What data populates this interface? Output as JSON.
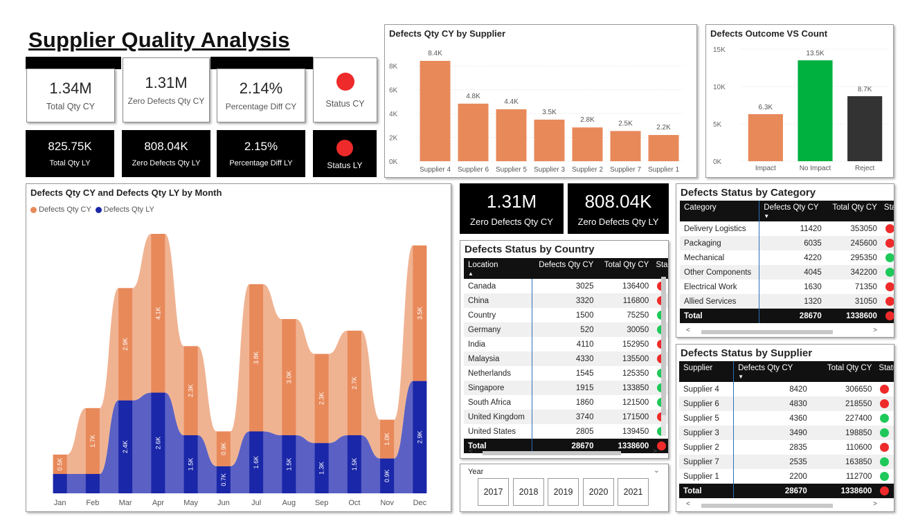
{
  "page_title": "Supplier Quality Analysis",
  "kpi_cy": [
    {
      "value": "1.34M",
      "label": "Total Qty CY"
    },
    {
      "value": "1.31M",
      "label": "Zero Defects Qty CY"
    },
    {
      "value": "2.14%",
      "label": "Percentage Diff CY"
    },
    {
      "label": "Status CY",
      "status_color": "#ef2a2a"
    }
  ],
  "kpi_ly": [
    {
      "value": "825.75K",
      "label": "Total Qty LY"
    },
    {
      "value": "808.04K",
      "label": "Zero Defects Qty LY"
    },
    {
      "value": "2.15%",
      "label": "Percentage Diff LY"
    },
    {
      "label": "Status LY",
      "status_color": "#ef2a2a"
    }
  ],
  "zero_defects_cards": [
    {
      "value": "1.31M",
      "label": "Zero Defects Qty CY"
    },
    {
      "value": "808.04K",
      "label": "Zero Defects Qty LY"
    }
  ],
  "colors": {
    "cy": "#e8895a",
    "cy_light": "#f0b392",
    "ly": "#1a27a8",
    "ly_light": "#5b61c4",
    "green": "#00b140",
    "dark": "#333333",
    "red": "#ef2a2a",
    "status_green": "#1ec95a"
  },
  "chart_data": [
    {
      "id": "supplier_bar",
      "type": "bar",
      "title": "Defects Qty CY by Supplier",
      "categories": [
        "Supplier 4",
        "Supplier 6",
        "Supplier 5",
        "Supplier 3",
        "Supplier 2",
        "Supplier 7",
        "Supplier 1"
      ],
      "values": [
        8420,
        4830,
        4360,
        3490,
        2835,
        2535,
        2200
      ],
      "data_labels": [
        "8.4K",
        "4.8K",
        "4.4K",
        "3.5K",
        "2.8K",
        "2.5K",
        "2.2K"
      ],
      "yticks": [
        "0K",
        "2K",
        "4K",
        "6K",
        "8K"
      ],
      "ylim": [
        0,
        9000
      ]
    },
    {
      "id": "outcome_bar",
      "type": "bar",
      "title": "Defects Outcome VS Count",
      "categories": [
        "Impact",
        "No Impact",
        "Reject"
      ],
      "values": [
        6300,
        13500,
        8700
      ],
      "data_labels": [
        "6.3K",
        "13.5K",
        "8.7K"
      ],
      "yticks": [
        "0K",
        "5K",
        "10K",
        "15K"
      ],
      "ylim": [
        0,
        15000
      ]
    },
    {
      "id": "monthly_ribbon",
      "type": "bar",
      "title": "Defects Qty CY and Defects Qty LY by Month",
      "legend": [
        "Defects Qty CY",
        "Defects Qty LY"
      ],
      "categories": [
        "Jan",
        "Feb",
        "Mar",
        "Apr",
        "May",
        "Jun",
        "Jul",
        "Aug",
        "Sep",
        "Oct",
        "Nov",
        "Dec"
      ],
      "series": [
        {
          "name": "Defects Qty LY",
          "values": [
            0.5,
            0.5,
            2.4,
            2.6,
            1.5,
            0.7,
            1.6,
            1.5,
            1.3,
            1.5,
            0.9,
            2.9
          ],
          "labels": [
            "",
            "",
            "2.4K",
            "2.6K",
            "1.5K",
            "0.7K",
            "1.6K",
            "1.5K",
            "1.3K",
            "1.5K",
            "0.9K",
            "2.9K"
          ]
        },
        {
          "name": "Defects Qty CY",
          "values": [
            0.5,
            1.7,
            2.9,
            4.1,
            2.3,
            0.9,
            3.8,
            3.0,
            2.3,
            2.7,
            1.0,
            3.5
          ],
          "labels": [
            "0.5K",
            "1.7K",
            "2.9K",
            "4.1K",
            "2.3K",
            "0.9K",
            "3.8K",
            "3.0K",
            "2.3K",
            "2.7K",
            "1.0K",
            "3.5K"
          ]
        }
      ]
    }
  ],
  "country_table": {
    "title": "Defects Status by Country",
    "headers": [
      "Location",
      "Defects Qty CY",
      "Total Qty CY",
      "Sta"
    ],
    "rows": [
      [
        "Canada",
        "3025",
        "136400",
        "red"
      ],
      [
        "China",
        "3320",
        "116800",
        "red"
      ],
      [
        "Country",
        "1500",
        "75250",
        "green"
      ],
      [
        "Germany",
        "520",
        "30050",
        "green"
      ],
      [
        "India",
        "4110",
        "152950",
        "red"
      ],
      [
        "Malaysia",
        "4330",
        "135500",
        "red"
      ],
      [
        "Netherlands",
        "1545",
        "125350",
        "green"
      ],
      [
        "Singapore",
        "1915",
        "133850",
        "green"
      ],
      [
        "South Africa",
        "1860",
        "121500",
        "green"
      ],
      [
        "United Kingdom",
        "3740",
        "171500",
        "red"
      ],
      [
        "United States",
        "2805",
        "139450",
        "green"
      ]
    ],
    "total": [
      "Total",
      "28670",
      "1338600",
      "red"
    ]
  },
  "category_table": {
    "title": "Defects Status by Category",
    "headers": [
      "Category",
      "Defects Qty CY",
      "Total Qty CY",
      "Statu"
    ],
    "rows": [
      [
        "Delivery Logistics",
        "11420",
        "353050",
        "red"
      ],
      [
        "Packaging",
        "6035",
        "245600",
        "red"
      ],
      [
        "Mechanical",
        "4220",
        "295350",
        "green"
      ],
      [
        "Other Components",
        "4045",
        "342200",
        "green"
      ],
      [
        "Electrical Work",
        "1630",
        "71350",
        "red"
      ],
      [
        "Allied Services",
        "1320",
        "31050",
        "red"
      ]
    ],
    "total": [
      "Total",
      "28670",
      "1338600",
      "red"
    ]
  },
  "supplier_table": {
    "title": "Defects Status by Supplier",
    "headers": [
      "Supplier",
      "Defects Qty CY",
      "Total Qty CY",
      "Statu"
    ],
    "rows": [
      [
        "Supplier 4",
        "8420",
        "306650",
        "red"
      ],
      [
        "Supplier 6",
        "4830",
        "218550",
        "red"
      ],
      [
        "Supplier 5",
        "4360",
        "227400",
        "green"
      ],
      [
        "Supplier 3",
        "3490",
        "198850",
        "green"
      ],
      [
        "Supplier 2",
        "2835",
        "110600",
        "red"
      ],
      [
        "Supplier 7",
        "2535",
        "163850",
        "green"
      ],
      [
        "Supplier 1",
        "2200",
        "112700",
        "green"
      ]
    ],
    "total": [
      "Total",
      "28670",
      "1338600",
      "red"
    ]
  },
  "year_slicer": {
    "title": "Year",
    "options": [
      "2017",
      "2018",
      "2019",
      "2020",
      "2021"
    ]
  },
  "icons": {
    "sort_asc": "up-arrow-icon",
    "sort_desc": "down-arrow-icon",
    "dropdown": "chevron-down-icon",
    "scroll_left": "chevron-left-icon",
    "scroll_right": "chevron-right-icon"
  }
}
